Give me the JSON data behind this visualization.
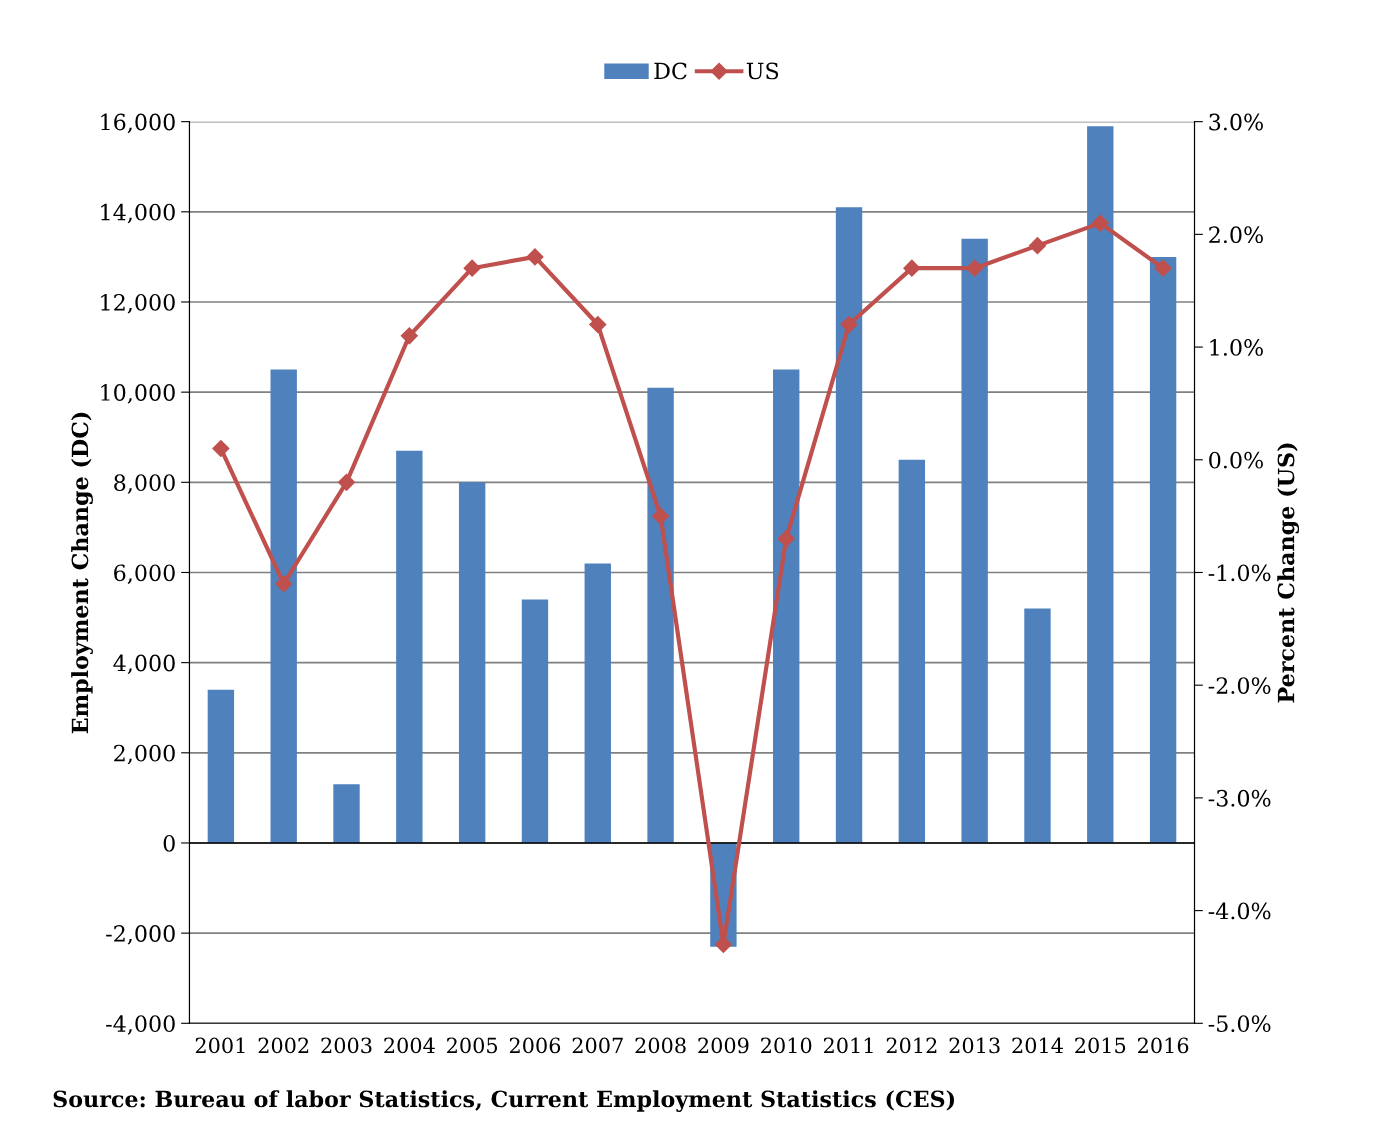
{
  "chart_data": {
    "type": "bar",
    "categories": [
      "2001",
      "2002",
      "2003",
      "2004",
      "2005",
      "2006",
      "2007",
      "2008",
      "2009",
      "2010",
      "2011",
      "2012",
      "2013",
      "2014",
      "2015",
      "2016"
    ],
    "series": [
      {
        "name": "DC",
        "type": "bar",
        "color": "#4f81bd",
        "values": [
          3400,
          10500,
          1300,
          8700,
          8000,
          5400,
          6200,
          10100,
          -2300,
          10500,
          14100,
          8500,
          13400,
          5200,
          15900,
          13000
        ]
      },
      {
        "name": "US",
        "type": "line",
        "axis": "y2",
        "color": "#c0504d",
        "marker": "diamond",
        "values": [
          0.1,
          -1.1,
          -0.2,
          1.1,
          1.7,
          1.8,
          1.2,
          -0.5,
          -4.3,
          -0.7,
          1.2,
          1.7,
          1.7,
          1.9,
          2.1,
          1.7
        ]
      }
    ],
    "ylabel": "Employment Change (DC)",
    "y2label": "Percent Change (US)",
    "ylim": [
      -4000,
      16000
    ],
    "yticks": [
      {
        "value": -4000,
        "label": "-4,000"
      },
      {
        "value": -2000,
        "label": "-2,000"
      },
      0,
      {
        "value": 2000,
        "label": "2,000"
      },
      {
        "value": 4000,
        "label": "4,000"
      },
      {
        "value": 6000,
        "label": "6,000"
      },
      {
        "value": 8000,
        "label": "8,000"
      },
      {
        "value": 10000,
        "label": "10,000"
      },
      {
        "value": 12000,
        "label": "12,000"
      },
      {
        "value": 14000,
        "label": "14,000"
      },
      {
        "value": 16000,
        "label": "16,000"
      }
    ],
    "y2lim": [
      -5.0,
      3.0
    ],
    "y2ticks": [
      {
        "value": -5,
        "label": "-5.0%"
      },
      {
        "value": -4,
        "label": "-4.0%"
      },
      {
        "value": -3,
        "label": "-3.0%"
      },
      {
        "value": -2,
        "label": "-2.0%"
      },
      {
        "value": -1,
        "label": "-1.0%"
      },
      {
        "value": 0,
        "label": "0.0%"
      },
      {
        "value": 1,
        "label": "1.0%"
      },
      {
        "value": 2,
        "label": "2.0%"
      },
      {
        "value": 3,
        "label": "3.0%"
      }
    ],
    "grid": "y",
    "legend": "top",
    "annotations": [
      "Source: Bureau of labor Statistics, Current Employment Statistics (CES)"
    ]
  }
}
